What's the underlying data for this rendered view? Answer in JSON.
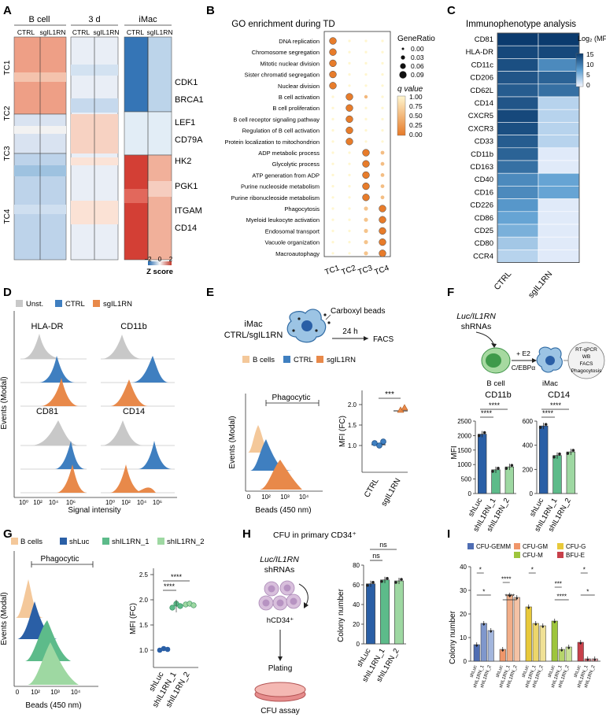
{
  "panels": {
    "A": "A",
    "B": "B",
    "C": "C",
    "D": "D",
    "E": "E",
    "F": "F",
    "G": "G",
    "H": "H",
    "I": "I"
  },
  "colors": {
    "orange": "#e8894a",
    "blue": "#3f7fc0",
    "gray": "#c8c8c8",
    "green_light": "#9ed8a2",
    "green_mid": "#5dbb8a",
    "dark_blue": "#2a5fa6",
    "peach": "#f4c89a"
  },
  "panel_a": {
    "groups": [
      "B cell",
      "3 d",
      "iMac"
    ],
    "conditions": [
      "CTRL",
      "sgIL1RN"
    ],
    "clusters": [
      "TC1",
      "TC2",
      "TC3",
      "TC4"
    ],
    "genes": [
      "CDK1",
      "BRCA1",
      "LEF1",
      "CD79A",
      "HK2",
      "PGK1",
      "ITGAM",
      "CD14"
    ],
    "scale_ticks": [
      "−2",
      "0",
      "2"
    ],
    "scale_label": "Z score"
  },
  "panel_b": {
    "title": "GO enrichment during TD",
    "terms": [
      "DNA replication",
      "Chromosome segregation",
      "Mitotic nuclear division",
      "Sister chromatid segregation",
      "Nuclear division",
      "B cell activation",
      "B cell proliferation",
      "B cell receptor signaling pathway",
      "Regulation of B cell activation",
      "Protein localization to mitochondrion",
      "ADP metabolic process",
      "Glycolytic process",
      "ATP generation from ADP",
      "Purine nucleoside metabolism",
      "Purine ribonucleoside metabolism",
      "Phagocytosis",
      "Myeloid leukocyte activation",
      "Endosomal transport",
      "Vacuole organization",
      "Macroautophagy"
    ],
    "columns": [
      "TC1",
      "TC2",
      "TC3",
      "TC4"
    ],
    "size_legend_title": "GeneRatio",
    "size_legend": [
      "0.00",
      "0.03",
      "0.06",
      "0.09"
    ],
    "color_legend_title": "q value",
    "color_legend": [
      "1.00",
      "0.75",
      "0.50",
      "0.25",
      "0.00"
    ]
  },
  "panel_c": {
    "title": "Immunophenotype analysis",
    "markers": [
      "CD81",
      "HLA-DR",
      "CD11c",
      "CD206",
      "CD62L",
      "CD14",
      "CXCR5",
      "CXCR3",
      "CD33",
      "CD11b",
      "CD163",
      "CD40",
      "CD16",
      "CD226",
      "CD86",
      "CD25",
      "CD80",
      "CCR4"
    ],
    "columns": [
      "CTRL",
      "sgIL1RN"
    ],
    "ctrl_values": [
      15,
      14,
      13.5,
      13,
      12.5,
      13,
      14,
      13.5,
      12.5,
      12,
      11,
      9,
      9,
      8,
      7,
      6,
      4,
      3
    ],
    "sg_values": [
      15,
      14,
      9,
      12,
      11,
      3,
      3,
      3,
      3,
      1,
      1,
      7,
      7,
      1,
      1,
      1,
      1,
      1
    ],
    "scale_title": "Log₂ (MFI)",
    "scale_ticks": [
      "15",
      "10",
      "5",
      "0"
    ]
  },
  "panel_d": {
    "legend": [
      "Unst.",
      "CTRL",
      "sgIL1RN"
    ],
    "markers": [
      "HLA-DR",
      "CD11b",
      "CD81",
      "CD14"
    ],
    "ylabel": "Events (Modal)",
    "xlabel": "Signal intensity",
    "xticks": [
      "10⁰",
      "10²",
      "10⁴",
      "10⁶"
    ]
  },
  "panel_e": {
    "title_line1": "iMac",
    "title_line2": "CTRL/sgIL1RN",
    "beads_label": "Carboxyl beads",
    "time_label": "24 h",
    "readout": "FACS",
    "legend": [
      "B cells",
      "CTRL",
      "sgIL1RN"
    ],
    "gate_label": "Phagocytic",
    "ylabel": "Events (Modal)",
    "xlabel": "Beads (450 nm)",
    "xticks": [
      "0",
      "10³",
      "10⁴"
    ],
    "xtick_mid": "10²",
    "dot_ylabel": "MFI (FC)",
    "dot_yticks": [
      "1.0",
      "1.5",
      "2.0"
    ],
    "groups": [
      "CTRL",
      "sgIL1RN"
    ],
    "sig": "***"
  },
  "panel_f": {
    "title_line1": "Luc/IL1RN",
    "title_line2": "shRNAs",
    "b_cell_label": "B cell",
    "treatment_line1": "+ E2",
    "treatment_line2": "C/EBPα",
    "imac_label": "iMac",
    "assays": [
      "RT-qPCR",
      "WB",
      "FACS",
      "Phagocytosis"
    ],
    "ylabel": "MFI",
    "groups": [
      "shLuc",
      "shIL1RN_1",
      "shIL1RN_2"
    ],
    "chart_data": [
      {
        "type": "bar",
        "title": "CD11b",
        "categories": [
          "shLuc",
          "shIL1RN_1",
          "shIL1RN_2"
        ],
        "values": [
          2050,
          820,
          920
        ],
        "ylim": [
          0,
          2500
        ],
        "yticks": [
          "0",
          "500",
          "1000",
          "1500",
          "2000",
          "2500"
        ],
        "sig": [
          "****",
          "****"
        ]
      },
      {
        "type": "bar",
        "title": "CD14",
        "categories": [
          "shLuc",
          "shIL1RN_1",
          "shIL1RN_2"
        ],
        "values": [
          560,
          315,
          345
        ],
        "ylim": [
          0,
          600
        ],
        "yticks": [
          "0",
          "200",
          "400",
          "600"
        ],
        "sig": [
          "****",
          "****"
        ]
      }
    ]
  },
  "panel_g": {
    "legend": [
      "B cells",
      "shLuc",
      "shIL1RN_1",
      "shIL1RN_2"
    ],
    "gate_label": "Phagocytic",
    "ylabel": "Events (Modal)",
    "xlabel": "Beads (450 nm)",
    "xticks": [
      "0",
      "10²",
      "10³",
      "10⁴"
    ],
    "dot_ylabel": "MFI (FC)",
    "dot_yticks": [
      "1.0",
      "1.5",
      "2.0",
      "2.5"
    ],
    "groups": [
      "shLuc",
      "shIL1RN_1",
      "shIL1RN_2"
    ],
    "sig": [
      "****",
      "****"
    ]
  },
  "panel_h": {
    "title": "CFU in primary CD34⁺",
    "shrna_line1": "Luc/IL1RN",
    "shrna_line2": "shRNAs",
    "cell_label": "hCD34⁺",
    "plating": "Plating",
    "assay": "CFU assay",
    "ylabel": "Colony number",
    "sig": [
      "ns",
      "ns"
    ],
    "chart_data": {
      "type": "bar",
      "categories": [
        "shLuc",
        "shIL1RN_1",
        "shIL1RN_2"
      ],
      "values": [
        61,
        65,
        64
      ],
      "ylim": [
        0,
        80
      ],
      "yticks": [
        "0",
        "20",
        "40",
        "60",
        "80"
      ]
    }
  },
  "panel_i": {
    "legend": [
      "CFU-GEMM",
      "CFU-GM",
      "CFU-G",
      "CFU-M",
      "BFU-E"
    ],
    "ylabel": "Colony number",
    "sig": [
      "*",
      "****",
      "*",
      "***",
      "*",
      "*",
      "****",
      "****",
      "*"
    ],
    "chart_data": {
      "type": "bar",
      "categories": [
        "shLuc",
        "shIL1RN_1",
        "shIL1RN_2"
      ],
      "ylim": [
        0,
        40
      ],
      "yticks": [
        "0",
        "10",
        "20",
        "30",
        "40"
      ],
      "series": [
        {
          "name": "CFU-GEMM",
          "values": [
            7,
            16,
            13
          ]
        },
        {
          "name": "CFU-GM",
          "values": [
            5,
            28,
            27
          ]
        },
        {
          "name": "CFU-G",
          "values": [
            23,
            16,
            15
          ]
        },
        {
          "name": "CFU-M",
          "values": [
            17,
            5,
            6
          ]
        },
        {
          "name": "BFU-E",
          "values": [
            8,
            1,
            1
          ]
        }
      ]
    }
  }
}
